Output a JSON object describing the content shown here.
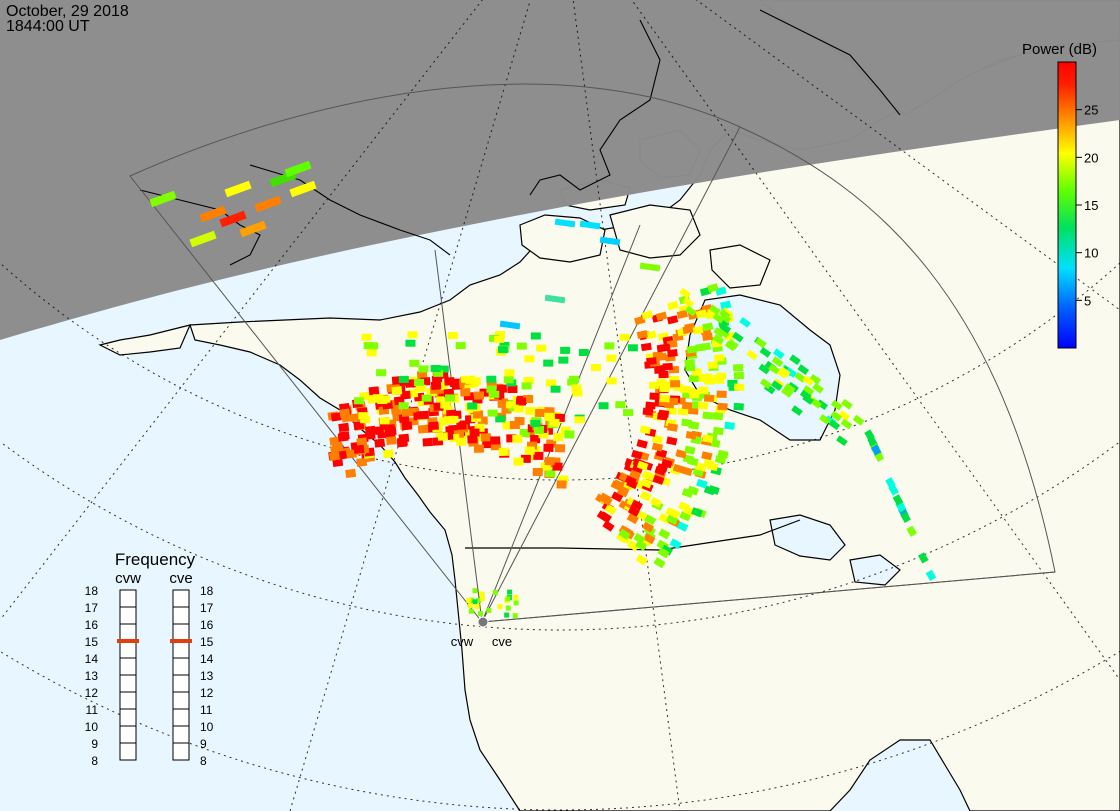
{
  "header": {
    "date": "October, 29 2018",
    "time": "1844:00 UT"
  },
  "colorbar": {
    "title": "Power (dB)",
    "ticks": [
      "25",
      "20",
      "15",
      "10",
      "5"
    ],
    "range": [
      0,
      30
    ],
    "tick_values": [
      25,
      20,
      15,
      10,
      5
    ]
  },
  "frequency_panel": {
    "title": "Frequency",
    "radars": [
      {
        "name": "cvw",
        "frequency": 15
      },
      {
        "name": "cve",
        "frequency": 15
      }
    ],
    "scale": [
      "18",
      "17",
      "16",
      "15",
      "14",
      "13",
      "12",
      "11",
      "10",
      "9",
      "8"
    ]
  },
  "map": {
    "radar_labels": [
      "cvw",
      "cve"
    ],
    "night_color": "#8c8c8c",
    "ocean_color": "#e8f6ff",
    "land_color": "#fbfaee"
  },
  "colors": {
    "scale": [
      "#0000ff",
      "#00a0ff",
      "#00ffe0",
      "#00e040",
      "#80ff00",
      "#ffff00",
      "#ff8000",
      "#ff0000"
    ]
  }
}
